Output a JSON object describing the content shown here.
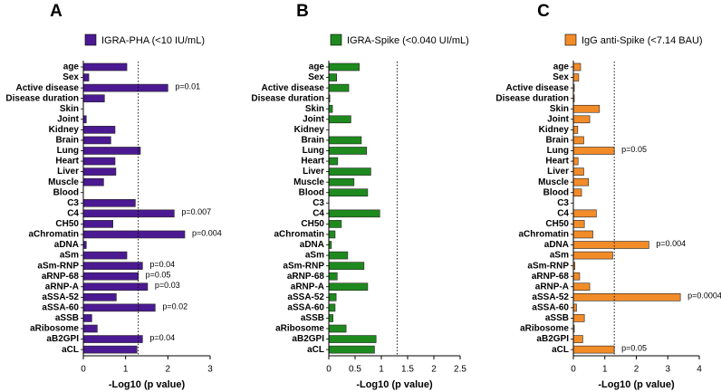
{
  "chart_data": [
    {
      "type": "bar",
      "orientation": "horizontal",
      "panel": "A",
      "categories": [
        "age",
        "Sex",
        "Active disease",
        "Disease duration",
        "Skin",
        "Joint",
        "Kidney",
        "Brain",
        "Lung",
        "Heart",
        "Liver",
        "Muscle",
        "Blood",
        "C3",
        "C4",
        "CH50",
        "aChromatin",
        "aDNA",
        "aSm",
        "aSm-RNP",
        "aRNP-68",
        "aRNP-A",
        "aSSA-52",
        "aSSA-60",
        "aSSB",
        "aRibosome",
        "aB2GPI",
        "aCL"
      ],
      "series": [
        {
          "name": "IGRA-PHA (<10 IU/mL)",
          "color": "#4b1a92",
          "values": [
            1.03,
            0.13,
            2.0,
            0.5,
            0,
            0.07,
            0.75,
            0.65,
            1.35,
            0.75,
            0.77,
            0.48,
            0,
            1.23,
            2.15,
            0.7,
            2.4,
            0.07,
            1.03,
            1.4,
            1.3,
            1.52,
            0.78,
            1.7,
            0.2,
            0.33,
            1.4,
            1.27
          ],
          "p_labels": [
            null,
            null,
            "p=0.01",
            null,
            null,
            null,
            null,
            null,
            null,
            null,
            null,
            null,
            null,
            null,
            "p=0.007",
            null,
            "p=0.004",
            null,
            null,
            "p=0.04",
            "p=0.05",
            "p=0.03",
            null,
            "p=0.02",
            null,
            null,
            "p=0.04",
            null
          ]
        }
      ],
      "xlim": [
        0,
        3
      ],
      "xticks": [
        0,
        1,
        2,
        3
      ],
      "xlabel": "-Log10 (p value)",
      "reference_line": 1.3
    },
    {
      "type": "bar",
      "orientation": "horizontal",
      "panel": "B",
      "categories": [
        "age",
        "Sex",
        "Active disease",
        "Disease duration",
        "Skin",
        "Joint",
        "Kidney",
        "Brain",
        "Lung",
        "Heart",
        "Liver",
        "Muscle",
        "Blood",
        "C3",
        "C4",
        "CH50",
        "aChromatin",
        "aDNA",
        "aSm",
        "aSm-RNP",
        "aRNP-68",
        "aRNP-A",
        "aSSA-52",
        "aSSA-60",
        "aSSB",
        "aRibosome",
        "aB2GPI",
        "aCL"
      ],
      "series": [
        {
          "name": "IGRA-Spike (<0.040 UI/mL)",
          "color": "#1e8a1e",
          "values": [
            0.58,
            0.15,
            0.38,
            0.02,
            0.07,
            0.42,
            0,
            0.62,
            0.72,
            0.17,
            0.8,
            0.48,
            0.74,
            0,
            0.97,
            0.24,
            0.12,
            0.05,
            0.36,
            0.67,
            0.16,
            0.74,
            0.14,
            0.12,
            0.08,
            0.33,
            0.9,
            0.87
          ]
        }
      ],
      "xlim": [
        0,
        2.5
      ],
      "xticks": [
        0,
        0.5,
        1,
        1.5,
        2,
        2.5
      ],
      "xlabel": "-Log10 (p value)",
      "reference_line": 1.3
    },
    {
      "type": "bar",
      "orientation": "horizontal",
      "panel": "C",
      "categories": [
        "age",
        "Sex",
        "Active disease",
        "Disease duration",
        "Skin",
        "Joint",
        "Kidney",
        "Brain",
        "Lung",
        "Heart",
        "Liver",
        "Muscle",
        "Blood",
        "C3",
        "C4",
        "CH50",
        "aChromatin",
        "aDNA",
        "aSm",
        "aSm-RNP",
        "aRNP-68",
        "aRNP-A",
        "aSSA-52",
        "aSSA-60",
        "aSSB",
        "aRibosome",
        "aB2GPI",
        "aCL"
      ],
      "series": [
        {
          "name": "IgG anti-Spike (<7.14 BAU)",
          "color": "#f28c28",
          "values": [
            0.23,
            0.17,
            0.03,
            0.03,
            0.83,
            0.52,
            0.14,
            0.33,
            1.3,
            0.15,
            0.33,
            0.48,
            0.26,
            0,
            0.73,
            0.35,
            0.62,
            2.4,
            1.25,
            0.05,
            0.2,
            0.52,
            3.4,
            0.1,
            0.35,
            0.03,
            0.3,
            1.3
          ],
          "p_labels": [
            null,
            null,
            null,
            null,
            null,
            null,
            null,
            null,
            "p=0.05",
            null,
            null,
            null,
            null,
            null,
            null,
            null,
            null,
            "p=0.004",
            null,
            null,
            null,
            null,
            "p=0.0004",
            null,
            null,
            null,
            null,
            "p=0.05"
          ]
        }
      ],
      "xlim": [
        0,
        4
      ],
      "xticks": [
        0,
        1,
        2,
        3,
        4
      ],
      "xlabel": "-Log10 (p value)",
      "reference_line": 1.3
    }
  ]
}
